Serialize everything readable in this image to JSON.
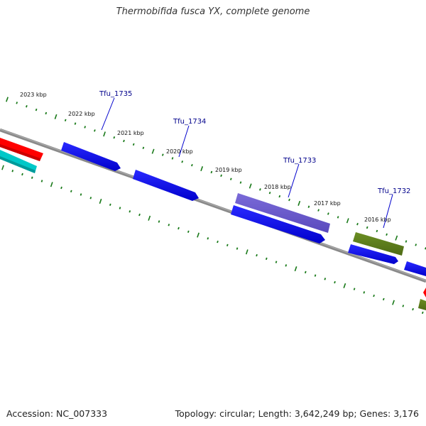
{
  "title": "Thermobifida fusca YX, complete genome",
  "footer": {
    "accession": "Accession: NC_007333",
    "topology": "Topology: circular; Length: 3,642,249 bp; Genes: 3,176"
  },
  "colors": {
    "background": "#ffffff",
    "backbone": "#808080",
    "tick": "#1a7a1a",
    "gene_label": "#00008b",
    "callout_line": "#0000cd",
    "cds_forward": "#0000ff",
    "cds_other": "#6a5acd",
    "olive": "#6b8e23",
    "rna_red": "#ff0000",
    "rna_cyan": "#00c8c8"
  },
  "ruler": {
    "labels": [
      "2023 kbp",
      "2022 kbp",
      "2021 kbp",
      "2020 kbp",
      "2019 kbp",
      "2018 kbp",
      "2017 kbp",
      "2016 kbp"
    ]
  },
  "genes": [
    {
      "label": "Tfu_1735"
    },
    {
      "label": "Tfu_1734"
    },
    {
      "label": "Tfu_1733"
    },
    {
      "label": "Tfu_1732"
    }
  ]
}
